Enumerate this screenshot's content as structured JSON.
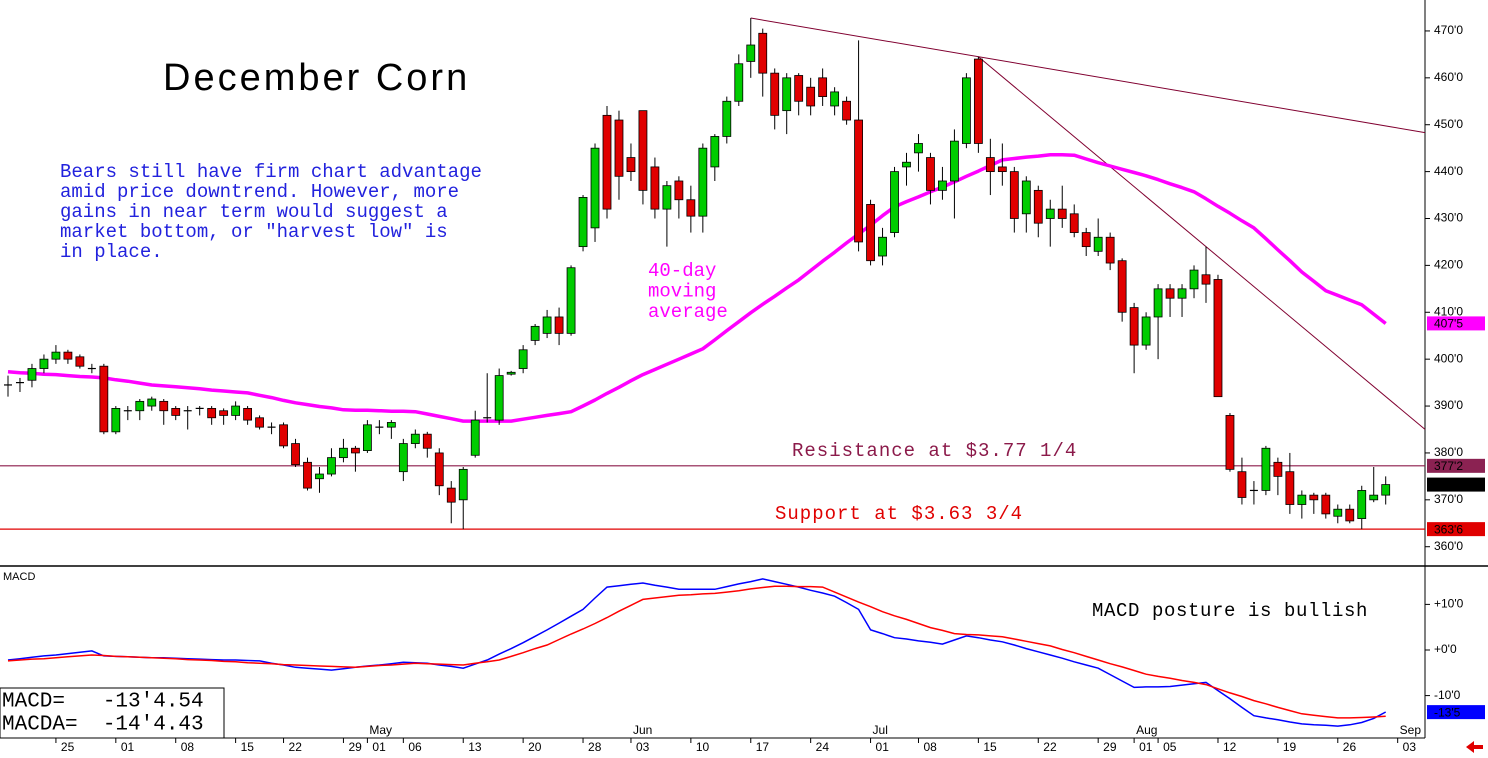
{
  "chart_data": [
    {
      "type": "candlestick",
      "title": "December Corn",
      "comment": [
        "Bears still have firm chart advantage",
        "amid price downtrend. However, more",
        "gains in near term would suggest a",
        "market bottom, or \"harvest low\" is",
        "in place."
      ],
      "up_color": "#00cc00",
      "down_color": "#e00000",
      "doji_color": "#000000",
      "open": [
        394.5,
        395,
        395.5,
        398,
        400,
        401.5,
        400.5,
        398,
        398.5,
        384.5,
        389,
        389,
        390,
        391,
        389.5,
        389,
        389.5,
        389.5,
        389,
        388,
        389.5,
        387.5,
        385.5,
        386,
        382,
        378,
        374.5,
        375.5,
        379,
        381,
        380.5,
        385.5,
        385.5,
        376,
        382,
        384,
        380,
        372.5,
        370,
        379.5,
        387.5,
        387,
        396.8,
        398,
        404,
        405.5,
        409,
        405.5,
        424,
        428,
        452,
        451,
        443,
        453,
        441,
        432,
        438,
        434,
        430.5,
        441,
        447.5,
        455,
        463.5,
        469.5,
        461,
        453,
        460.5,
        458,
        460,
        454,
        455,
        451,
        433,
        422,
        427,
        441,
        444,
        443,
        436,
        438,
        446,
        464,
        443,
        441,
        440,
        431,
        436,
        430,
        432,
        431,
        427,
        423,
        426,
        421,
        411,
        403,
        409,
        415,
        413,
        415,
        418,
        417,
        388,
        376,
        372,
        372,
        378,
        376,
        369,
        371,
        371,
        366.5,
        368,
        366,
        370,
        371,
        null
      ],
      "high": [
        396.5,
        396,
        399,
        401,
        403,
        402,
        401,
        399,
        399,
        390,
        390,
        391.5,
        392,
        391.5,
        390,
        390,
        390,
        390,
        389.5,
        391,
        390,
        388,
        386.5,
        386.5,
        383,
        379,
        377,
        381,
        383,
        381.5,
        387,
        387,
        387,
        383,
        385,
        384.5,
        381,
        374,
        377,
        389,
        397,
        398,
        397.5,
        403,
        407.5,
        410.5,
        411,
        420,
        435,
        446,
        454,
        453,
        446,
        453,
        443,
        438,
        439,
        437,
        446,
        448,
        456,
        465,
        472.75,
        470.5,
        462,
        461,
        461,
        460,
        462,
        458,
        456,
        468,
        434,
        428,
        441,
        444,
        448,
        444,
        441,
        449,
        461,
        464.5,
        447,
        446,
        441,
        439,
        437,
        434,
        437,
        433,
        428,
        430,
        427,
        421.5,
        412,
        410,
        416,
        416,
        416,
        420,
        424,
        418,
        388.5,
        379,
        374,
        381.5,
        379,
        380,
        372,
        371.5,
        371.5,
        369,
        369,
        373,
        377,
        375,
        null
      ],
      "low": [
        392,
        393,
        394,
        397,
        399,
        399,
        398,
        397,
        384,
        384,
        387,
        387,
        389,
        386,
        387,
        385,
        388,
        386,
        386,
        387,
        386,
        385,
        384,
        381,
        377,
        372,
        371.5,
        375,
        378,
        376,
        380,
        384,
        383,
        374,
        381,
        379,
        371,
        365,
        363.75,
        379,
        386.5,
        386,
        396.5,
        397,
        403,
        404.5,
        403,
        405,
        423,
        425,
        430,
        434,
        438,
        433,
        430,
        424,
        430,
        427,
        427,
        438,
        446,
        454,
        460,
        456,
        449,
        448,
        452,
        452,
        454,
        452,
        450,
        423,
        420,
        420,
        426,
        437,
        440,
        433,
        434,
        430,
        445,
        444,
        435,
        437,
        427,
        427,
        426,
        424,
        428,
        426,
        422,
        422,
        419,
        408,
        397,
        402,
        400,
        409,
        409,
        413,
        412,
        392,
        376,
        369,
        369,
        371,
        371,
        367,
        366,
        367,
        366,
        365,
        365,
        363.75,
        369.5,
        369,
        null
      ],
      "close": [
        394.5,
        395,
        398,
        400,
        401.5,
        400,
        398.5,
        398,
        384.5,
        389.5,
        389,
        391,
        391.5,
        389,
        388,
        389,
        389.5,
        387.5,
        388,
        390,
        387,
        385.5,
        385.5,
        381.5,
        377.5,
        372.5,
        375.5,
        379,
        381,
        380,
        386,
        385.5,
        386.5,
        382,
        384,
        381,
        373,
        369.5,
        376.5,
        387,
        387.5,
        396.5,
        397.2,
        402,
        407,
        409,
        405.5,
        419.5,
        434.5,
        445,
        432,
        439,
        440,
        436,
        432,
        437,
        434,
        430.5,
        445,
        447.5,
        455,
        463,
        467,
        461,
        452,
        460,
        455,
        454,
        456,
        457,
        451,
        425,
        421,
        426,
        440,
        442,
        446,
        436,
        438,
        446.5,
        460,
        446,
        440,
        440,
        430,
        438,
        429,
        432,
        430,
        427,
        424,
        426,
        420.5,
        410,
        403,
        409,
        415,
        413,
        415,
        419,
        416,
        392,
        376.5,
        370.5,
        372,
        381,
        375,
        369,
        371,
        370,
        367,
        368,
        365.5,
        372,
        371,
        373.25,
        null
      ],
      "moving_average": {
        "label": [
          "40-day",
          "moving",
          "average"
        ],
        "color": "#ff00ff",
        "values": [
          397.3,
          397.1,
          397.0,
          396.8,
          396.7,
          396.5,
          396.3,
          396.2,
          396.0,
          395.6,
          395.3,
          394.9,
          394.5,
          394.3,
          394.1,
          393.9,
          393.7,
          393.4,
          393.2,
          393.0,
          392.8,
          392.3,
          391.8,
          391.2,
          390.7,
          390.3,
          389.9,
          389.6,
          389.2,
          389.1,
          389.1,
          389.0,
          388.9,
          388.9,
          388.8,
          388.3,
          387.8,
          387.3,
          386.8,
          386.8,
          386.8,
          386.8,
          386.8,
          387.2,
          387.6,
          388.0,
          388.4,
          388.8,
          390.0,
          391.3,
          392.7,
          394.0,
          395.4,
          396.7,
          397.8,
          398.9,
          400.0,
          401.1,
          402.2,
          404.1,
          406.1,
          408.0,
          409.9,
          411.7,
          413.4,
          415.2,
          416.9,
          418.9,
          420.9,
          422.8,
          424.8,
          426.7,
          428.6,
          430.6,
          432.5,
          433.6,
          434.6,
          435.7,
          436.7,
          437.8,
          439.0,
          440.1,
          441.3,
          442.5,
          442.8,
          443.1,
          443.3,
          443.6,
          443.6,
          443.5,
          442.7,
          441.9,
          441.2,
          440.5,
          439.8,
          439.1,
          438.3,
          437.4,
          436.6,
          435.7,
          434.2,
          432.6,
          431.1,
          429.5,
          428.0,
          425.7,
          423.3,
          421.0,
          418.6,
          416.6,
          414.6,
          413.6,
          412.6,
          411.6,
          409.6,
          407.6,
          null
        ]
      },
      "levels": [
        {
          "label": "Resistance at $3.77 1/4",
          "value": 377.25,
          "color": "#8b1a4a"
        },
        {
          "label": "Support at $3.63 3/4",
          "value": 363.75,
          "color": "#e00000"
        }
      ],
      "trendlines": [
        {
          "points": [
            [
              62,
              472.75
            ],
            [
              81,
              464.5
            ]
          ],
          "color": "#800030"
        },
        {
          "points": [
            [
              81,
              464.5
            ],
            [
              100,
              424
            ]
          ],
          "color": "#800030"
        }
      ],
      "price_tags": [
        {
          "value": 407.625,
          "label": "407'5",
          "color": "#ff00ff"
        },
        {
          "value": 377.25,
          "label": "377'2",
          "color": "#8b2252"
        },
        {
          "value": 373.25,
          "label": "373'2",
          "color": "#000000"
        },
        {
          "value": 363.75,
          "label": "363'6",
          "color": "#e00000"
        }
      ],
      "ylim": [
        356.1,
        476.6
      ],
      "yticks": [
        {
          "value": 360,
          "label": "360'0"
        },
        {
          "value": 370,
          "label": "370'0"
        },
        {
          "value": 380,
          "label": "380'0"
        },
        {
          "value": 390,
          "label": "390'0"
        },
        {
          "value": 400,
          "label": "400'0"
        },
        {
          "value": 410,
          "label": "410'0"
        },
        {
          "value": 420,
          "label": "420'0"
        },
        {
          "value": 430,
          "label": "430'0"
        },
        {
          "value": 440,
          "label": "440'0"
        },
        {
          "value": 450,
          "label": "450'0"
        },
        {
          "value": 460,
          "label": "460'0"
        },
        {
          "value": 470,
          "label": "470'0"
        }
      ]
    },
    {
      "type": "line",
      "title": "MACD",
      "annotation": "MACD posture is bullish",
      "readout": [
        "MACD=   -13'4.54",
        "MACDA=  -14'4.43"
      ],
      "categories": [
        null,
        null,
        null,
        null,
        "25",
        null,
        null,
        null,
        null,
        "01",
        null,
        null,
        null,
        null,
        "08",
        null,
        null,
        null,
        null,
        "15",
        null,
        null,
        null,
        "22",
        null,
        null,
        null,
        null,
        "29",
        null,
        "01",
        null,
        null,
        "06",
        null,
        null,
        null,
        null,
        "13",
        null,
        null,
        null,
        null,
        "20",
        null,
        null,
        null,
        null,
        "28",
        null,
        null,
        null,
        "03",
        null,
        null,
        null,
        null,
        "10",
        null,
        null,
        null,
        null,
        "17",
        null,
        null,
        null,
        null,
        "24",
        null,
        null,
        null,
        null,
        "01",
        null,
        null,
        null,
        "08",
        null,
        null,
        null,
        null,
        "15",
        null,
        null,
        null,
        null,
        "22",
        null,
        null,
        null,
        null,
        "29",
        null,
        null,
        "01",
        null,
        "05",
        null,
        null,
        null,
        null,
        "12",
        null,
        null,
        null,
        null,
        "19",
        null,
        null,
        null,
        null,
        "26",
        null,
        null,
        null,
        null,
        "03"
      ],
      "months": [
        null,
        null,
        null,
        null,
        null,
        null,
        null,
        null,
        null,
        null,
        null,
        null,
        null,
        null,
        null,
        null,
        null,
        null,
        null,
        null,
        null,
        null,
        null,
        null,
        null,
        null,
        null,
        null,
        null,
        null,
        "May",
        null,
        null,
        null,
        null,
        null,
        null,
        null,
        null,
        null,
        null,
        null,
        null,
        null,
        null,
        null,
        null,
        null,
        null,
        null,
        null,
        null,
        "Jun",
        null,
        null,
        null,
        null,
        null,
        null,
        null,
        null,
        null,
        null,
        null,
        null,
        null,
        null,
        null,
        null,
        null,
        null,
        null,
        "Jul",
        null,
        null,
        null,
        null,
        null,
        null,
        null,
        null,
        null,
        null,
        null,
        null,
        null,
        null,
        null,
        null,
        null,
        null,
        null,
        null,
        null,
        "Aug",
        null,
        null,
        null,
        null,
        null,
        null,
        null,
        null,
        null,
        null,
        null,
        null,
        null,
        null,
        null,
        null,
        null,
        null,
        null,
        null,
        null,
        "Sep"
      ],
      "series": [
        {
          "name": "MACD",
          "color": "#0000ff",
          "values": [
            -2.2,
            -1.9,
            -1.6,
            -1.3,
            -1.1,
            -0.8,
            -0.5,
            -0.2,
            -1.3,
            -1.4,
            -1.5,
            -1.6,
            -1.7,
            -1.7,
            -1.8,
            -1.9,
            -2.0,
            -2.1,
            -2.2,
            -2.2,
            -2.3,
            -2.4,
            -2.9,
            -3.3,
            -3.8,
            -4.0,
            -4.2,
            -4.4,
            -4.1,
            -3.8,
            -3.5,
            -3.3,
            -3.0,
            -2.7,
            -2.8,
            -2.9,
            -3.3,
            -3.6,
            -4.0,
            -3.1,
            -2.2,
            -0.9,
            0.3,
            1.6,
            3.0,
            4.4,
            5.9,
            7.4,
            8.9,
            11.4,
            13.8,
            14.1,
            14.4,
            14.7,
            14.2,
            13.8,
            13.3,
            13.3,
            13.3,
            13.3,
            13.9,
            14.5,
            15.0,
            15.6,
            15.0,
            14.4,
            13.8,
            13.1,
            12.5,
            11.8,
            10.4,
            8.9,
            4.4,
            3.6,
            2.7,
            2.4,
            2.0,
            1.7,
            1.3,
            2.2,
            3.1,
            2.7,
            2.2,
            1.8,
            1.1,
            0.3,
            -0.4,
            -1.1,
            -1.8,
            -2.6,
            -3.3,
            -4.0,
            -5.4,
            -6.8,
            -8.2,
            -8.1,
            -8.1,
            -8.0,
            -7.7,
            -7.4,
            -7.1,
            -8.9,
            -10.7,
            -12.6,
            -14.4,
            -14.9,
            -15.3,
            -15.8,
            -16.2,
            -16.4,
            -16.5,
            -16.7,
            -16.4,
            -15.9,
            -15.0,
            -13.6,
            null
          ]
        },
        {
          "name": "MACDA",
          "color": "#ff0000",
          "values": [
            -2.4,
            -2.2,
            -2.0,
            -1.9,
            -1.7,
            -1.5,
            -1.3,
            -1.1,
            -1.2,
            -1.4,
            -1.5,
            -1.6,
            -1.7,
            -1.8,
            -1.9,
            -2.1,
            -2.2,
            -2.3,
            -2.5,
            -2.6,
            -2.8,
            -2.9,
            -3.0,
            -3.2,
            -3.3,
            -3.4,
            -3.5,
            -3.6,
            -3.7,
            -3.8,
            -3.6,
            -3.4,
            -3.3,
            -3.1,
            -2.9,
            -3.0,
            -3.1,
            -3.2,
            -3.3,
            -2.9,
            -2.6,
            -2.2,
            -1.4,
            -0.6,
            0.3,
            1.1,
            2.3,
            3.5,
            4.6,
            5.8,
            7.1,
            8.5,
            9.8,
            11.1,
            11.4,
            11.7,
            12.0,
            12.1,
            12.3,
            12.4,
            12.7,
            13.0,
            13.4,
            13.7,
            14.0,
            14.0,
            13.9,
            13.9,
            13.8,
            12.7,
            11.6,
            10.5,
            9.5,
            8.4,
            7.5,
            6.7,
            5.8,
            4.9,
            4.3,
            3.6,
            3.4,
            3.3,
            3.1,
            2.9,
            2.4,
            1.9,
            1.4,
            0.9,
            0.1,
            -0.6,
            -1.4,
            -2.2,
            -3.0,
            -3.7,
            -4.5,
            -5.3,
            -5.8,
            -6.2,
            -6.7,
            -7.1,
            -7.6,
            -8.5,
            -9.4,
            -10.2,
            -11.1,
            -11.8,
            -12.6,
            -13.3,
            -14.0,
            -14.3,
            -14.6,
            -14.9,
            -14.9,
            -14.8,
            -14.7,
            -14.55,
            null
          ]
        }
      ],
      "tag": {
        "value": -13.625,
        "label": "-13'5",
        "color": "#0000ff"
      },
      "ylim": [
        -19.3,
        18.2
      ],
      "yticks": [
        {
          "value": 10,
          "label": "+10'0"
        },
        {
          "value": 0,
          "label": "+0'0"
        },
        {
          "value": -10,
          "label": "-10'0"
        }
      ]
    }
  ]
}
